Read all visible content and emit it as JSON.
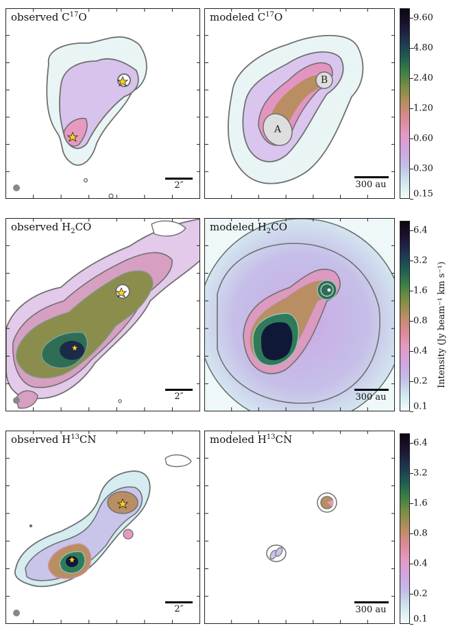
{
  "panels": [
    {
      "title_pre": "observed C",
      "title_sup": "17",
      "title_sub": "",
      "title_post": "O",
      "scale": "2″",
      "beam": true,
      "row": 0,
      "col": 0
    },
    {
      "title_pre": "modeled C",
      "title_sup": "17",
      "title_sub": "",
      "title_post": "O",
      "scale": "300 au",
      "beam": false,
      "row": 0,
      "col": 1
    },
    {
      "title_pre": "observed H",
      "title_sup": "",
      "title_sub": "2",
      "title_post": "CO",
      "scale": "2″",
      "beam": true,
      "row": 1,
      "col": 0
    },
    {
      "title_pre": "modeled H",
      "title_sup": "",
      "title_sub": "2",
      "title_post": "CO",
      "scale": "300 au",
      "beam": false,
      "row": 1,
      "col": 1
    },
    {
      "title_pre": "observed H",
      "title_sup": "13",
      "title_sub": "",
      "title_post": "CN",
      "scale": "2″",
      "beam": true,
      "row": 2,
      "col": 0
    },
    {
      "title_pre": "modeled H",
      "title_sup": "13",
      "title_sub": "",
      "title_post": "CN",
      "scale": "300 au",
      "beam": false,
      "row": 2,
      "col": 1
    }
  ],
  "source_labels": {
    "a": "A",
    "b": "B"
  },
  "colorbars": [
    {
      "ticks": [
        "9.60",
        "4.80",
        "2.40",
        "1.20",
        "0.60",
        "0.30",
        "0.15"
      ],
      "min": 0.15,
      "max": 12.0
    },
    {
      "ticks": [
        "6.4",
        "3.2",
        "1.6",
        "0.8",
        "0.4",
        "0.2",
        "0.1"
      ],
      "min": 0.1,
      "max": 8.0
    },
    {
      "ticks": [
        "6.4",
        "3.2",
        "1.6",
        "0.8",
        "0.4",
        "0.2",
        "0.1"
      ],
      "min": 0.1,
      "max": 8.0
    }
  ],
  "colorbar_label": "Intensity (Jy beam⁻¹ km s⁻¹)",
  "colormap": [
    "#f4fcfb",
    "#cfe9ee",
    "#c3bfe8",
    "#d0a6e0",
    "#e49ac4",
    "#dc8a97",
    "#b98e62",
    "#7f8e45",
    "#3c8045",
    "#1f5a52",
    "#1f3350",
    "#1c1430",
    "#0d0612"
  ],
  "colors": {
    "contour": "#6f6f6f",
    "star": "#ffd21f",
    "beam": "#888888"
  },
  "chart_data": [
    {
      "type": "heatmap",
      "title": "observed C17O",
      "peaks": [
        "southern source",
        "northern source"
      ],
      "colorbar_ticks": [
        9.6,
        4.8,
        2.4,
        1.2,
        0.6,
        0.3,
        0.15
      ],
      "scale_bar": "2″"
    },
    {
      "type": "heatmap",
      "title": "modeled C17O",
      "peaks": [
        "A",
        "B"
      ],
      "colorbar_ticks": [
        9.6,
        4.8,
        2.4,
        1.2,
        0.6,
        0.3,
        0.15
      ],
      "scale_bar": "300 au"
    },
    {
      "type": "heatmap",
      "title": "observed H2CO",
      "colorbar_ticks": [
        6.4,
        3.2,
        1.6,
        0.8,
        0.4,
        0.2,
        0.1
      ],
      "scale_bar": "2″"
    },
    {
      "type": "heatmap",
      "title": "modeled H2CO",
      "colorbar_ticks": [
        6.4,
        3.2,
        1.6,
        0.8,
        0.4,
        0.2,
        0.1
      ],
      "scale_bar": "300 au"
    },
    {
      "type": "heatmap",
      "title": "observed H13CN",
      "colorbar_ticks": [
        6.4,
        3.2,
        1.6,
        0.8,
        0.4,
        0.2,
        0.1
      ],
      "scale_bar": "2″"
    },
    {
      "type": "heatmap",
      "title": "modeled H13CN",
      "colorbar_ticks": [
        6.4,
        3.2,
        1.6,
        0.8,
        0.4,
        0.2,
        0.1
      ],
      "scale_bar": "300 au"
    }
  ]
}
